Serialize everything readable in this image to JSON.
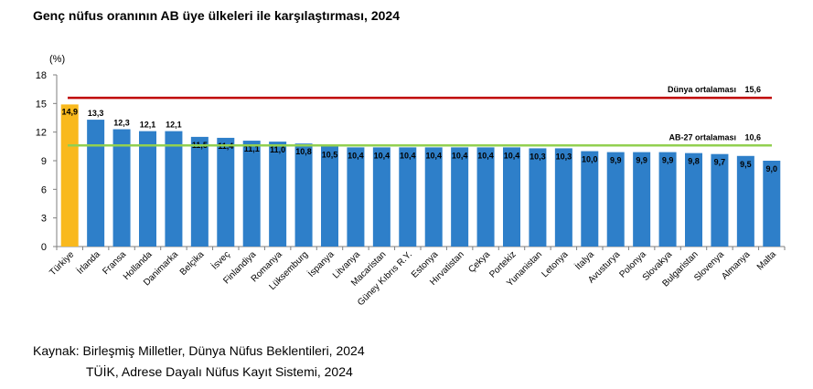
{
  "title": "Genç nüfus oranının AB üye ülkeleri ile karşılaştırması, 2024",
  "source": {
    "line1": "Kaynak: Birleşmiş Milletler, Dünya Nüfus Beklentileri, 2024",
    "line2": "TÜİK, Adrese Dayalı Nüfus Kayıt Sistemi, 2024"
  },
  "chart_data": {
    "type": "bar",
    "unit_label": "(%)",
    "ylim": [
      0,
      18
    ],
    "yticks": [
      0,
      3,
      6,
      9,
      12,
      15,
      18
    ],
    "grid": false,
    "categories": [
      "Türkiye",
      "İrlanda",
      "Fransa",
      "Hollanda",
      "Danimarka",
      "Belçika",
      "İsveç",
      "Finlandiya",
      "Romanya",
      "Lüksemburg",
      "İspanya",
      "Litvanya",
      "Macaristan",
      "Güney Kıbrıs R.Y.",
      "Estonya",
      "Hırvatistan",
      "Çekya",
      "Portekiz",
      "Yunanistan",
      "Letonya",
      "İtalya",
      "Avusturya",
      "Polonya",
      "Slovakya",
      "Bulgaristan",
      "Slovenya",
      "Almanya",
      "Malta"
    ],
    "values": [
      14.9,
      13.3,
      12.3,
      12.1,
      12.1,
      11.5,
      11.4,
      11.1,
      11.0,
      10.8,
      10.5,
      10.4,
      10.4,
      10.4,
      10.4,
      10.4,
      10.4,
      10.4,
      10.3,
      10.3,
      10.0,
      9.9,
      9.9,
      9.9,
      9.8,
      9.7,
      9.5,
      9.0
    ],
    "value_labels": [
      "14,9",
      "13,3",
      "12,3",
      "12,1",
      "12,1",
      "11,5",
      "11,4",
      "11,1",
      "11,0",
      "10,8",
      "10,5",
      "10,4",
      "10,4",
      "10,4",
      "10,4",
      "10,4",
      "10,4",
      "10,4",
      "10,3",
      "10,3",
      "10,0",
      "9,9",
      "9,9",
      "9,9",
      "9,8",
      "9,7",
      "9,5",
      "9,0"
    ],
    "highlight_category": "Türkiye",
    "colors": {
      "bar": "#2e7fc9",
      "highlight": "#f9b91d",
      "world_line": "#c00000",
      "eu_line": "#92d050"
    },
    "reference_lines": [
      {
        "label": "Dünya ortalaması",
        "value": 15.6,
        "value_label": "15,6",
        "color": "#c00000"
      },
      {
        "label": "AB-27 ortalaması",
        "value": 10.6,
        "value_label": "10,6",
        "color": "#92d050"
      }
    ]
  }
}
